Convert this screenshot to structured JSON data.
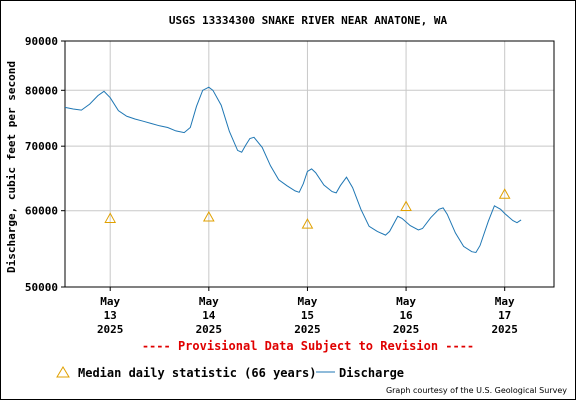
{
  "chart_data": {
    "type": "line",
    "title": "USGS 13334300 SNAKE RIVER NEAR ANATONE, WA",
    "ylabel": "Discharge, cubic feet per second",
    "xlabel": "",
    "y_scale": "log",
    "ylim": [
      50000,
      90000
    ],
    "y_ticks": [
      "90000",
      "80000",
      "70000",
      "60000",
      "50000"
    ],
    "y_tick_values": [
      90000,
      80000,
      70000,
      60000,
      50000
    ],
    "x_range": [
      "2025-05-12 13:00",
      "2025-05-17 12:00"
    ],
    "x_ticks": [
      {
        "date": "2025-05-13 00:00",
        "lines": [
          "May",
          "13",
          "2025"
        ]
      },
      {
        "date": "2025-05-14 00:00",
        "lines": [
          "May",
          "14",
          "2025"
        ]
      },
      {
        "date": "2025-05-15 00:00",
        "lines": [
          "May",
          "15",
          "2025"
        ]
      },
      {
        "date": "2025-05-16 00:00",
        "lines": [
          "May",
          "16",
          "2025"
        ]
      },
      {
        "date": "2025-05-17 00:00",
        "lines": [
          "May",
          "17",
          "2025"
        ]
      }
    ],
    "grid": true,
    "series": [
      {
        "name": "Discharge",
        "color": "#1f77b4",
        "points": [
          [
            "2025-05-12 13:00",
            76800
          ],
          [
            "2025-05-12 15:00",
            76500
          ],
          [
            "2025-05-12 17:00",
            76300
          ],
          [
            "2025-05-12 19:00",
            77400
          ],
          [
            "2025-05-12 21:00",
            79000
          ],
          [
            "2025-05-12 22:30",
            79800
          ],
          [
            "2025-05-13 00:00",
            78600
          ],
          [
            "2025-05-13 02:00",
            76200
          ],
          [
            "2025-05-13 04:00",
            75200
          ],
          [
            "2025-05-13 06:00",
            74700
          ],
          [
            "2025-05-13 08:00",
            74300
          ],
          [
            "2025-05-13 10:00",
            73900
          ],
          [
            "2025-05-13 12:00",
            73500
          ],
          [
            "2025-05-13 14:00",
            73200
          ],
          [
            "2025-05-13 16:00",
            72600
          ],
          [
            "2025-05-13 18:00",
            72300
          ],
          [
            "2025-05-13 19:30",
            73200
          ],
          [
            "2025-05-13 21:00",
            77000
          ],
          [
            "2025-05-13 22:30",
            80000
          ],
          [
            "2025-05-14 00:00",
            80600
          ],
          [
            "2025-05-14 01:00",
            80000
          ],
          [
            "2025-05-14 03:00",
            77200
          ],
          [
            "2025-05-14 05:00",
            72500
          ],
          [
            "2025-05-14 07:00",
            69300
          ],
          [
            "2025-05-14 08:00",
            69000
          ],
          [
            "2025-05-14 09:00",
            70200
          ],
          [
            "2025-05-14 10:00",
            71300
          ],
          [
            "2025-05-14 11:00",
            71500
          ],
          [
            "2025-05-14 13:00",
            69800
          ],
          [
            "2025-05-14 15:00",
            66800
          ],
          [
            "2025-05-14 17:00",
            64600
          ],
          [
            "2025-05-14 19:00",
            63700
          ],
          [
            "2025-05-14 21:00",
            62900
          ],
          [
            "2025-05-14 22:00",
            62700
          ],
          [
            "2025-05-14 23:00",
            64000
          ],
          [
            "2025-05-15 00:00",
            65900
          ],
          [
            "2025-05-15 01:00",
            66300
          ],
          [
            "2025-05-15 02:00",
            65700
          ],
          [
            "2025-05-15 04:00",
            63800
          ],
          [
            "2025-05-15 06:00",
            62800
          ],
          [
            "2025-05-15 07:00",
            62600
          ],
          [
            "2025-05-15 08:00",
            63700
          ],
          [
            "2025-05-15 09:30",
            65000
          ],
          [
            "2025-05-15 11:00",
            63400
          ],
          [
            "2025-05-15 13:00",
            60200
          ],
          [
            "2025-05-15 15:00",
            57800
          ],
          [
            "2025-05-15 17:00",
            57100
          ],
          [
            "2025-05-15 19:00",
            56600
          ],
          [
            "2025-05-15 20:00",
            57100
          ],
          [
            "2025-05-15 22:00",
            59200
          ],
          [
            "2025-05-15 23:00",
            58900
          ],
          [
            "2025-05-16 01:00",
            57900
          ],
          [
            "2025-05-16 03:00",
            57300
          ],
          [
            "2025-05-16 04:00",
            57500
          ],
          [
            "2025-05-16 06:00",
            59000
          ],
          [
            "2025-05-16 08:00",
            60200
          ],
          [
            "2025-05-16 09:00",
            60400
          ],
          [
            "2025-05-16 10:00",
            59500
          ],
          [
            "2025-05-16 12:00",
            56900
          ],
          [
            "2025-05-16 14:00",
            55100
          ],
          [
            "2025-05-16 16:00",
            54400
          ],
          [
            "2025-05-16 17:00",
            54300
          ],
          [
            "2025-05-16 18:00",
            55200
          ],
          [
            "2025-05-16 20:00",
            58500
          ],
          [
            "2025-05-16 21:30",
            60700
          ],
          [
            "2025-05-16 23:00",
            60200
          ],
          [
            "2025-05-17 00:00",
            59600
          ],
          [
            "2025-05-17 02:00",
            58600
          ],
          [
            "2025-05-17 03:00",
            58300
          ],
          [
            "2025-05-17 04:00",
            58700
          ]
        ]
      },
      {
        "name": "Median daily statistic (66 years)",
        "color": "#e0a000",
        "marker": "triangle",
        "points": [
          [
            "2025-05-13 00:00",
            58900
          ],
          [
            "2025-05-14 00:00",
            59100
          ],
          [
            "2025-05-15 00:00",
            58100
          ],
          [
            "2025-05-16 00:00",
            60600
          ],
          [
            "2025-05-17 00:00",
            62400
          ]
        ]
      }
    ],
    "legend_position": "bottom",
    "annotations": [
      "---- Provisional Data Subject to Revision ----"
    ],
    "credit": "Graph courtesy of the U.S. Geological Survey"
  }
}
